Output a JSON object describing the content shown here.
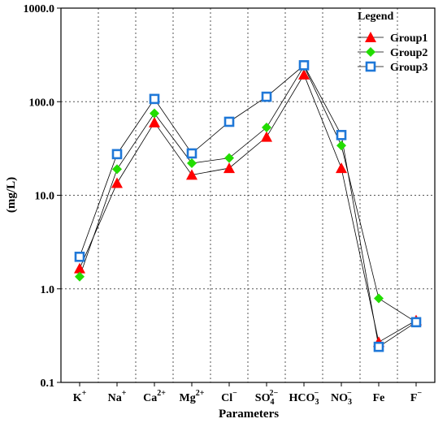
{
  "chart_data": {
    "type": "line",
    "yscale": "log",
    "ylim": [
      0.1,
      1000
    ],
    "ylabel": "(mg/L)",
    "xlabel": "Parameters",
    "y_ticks": [
      "0.1",
      "1.0",
      "10.0",
      "100.0",
      "1000.0"
    ],
    "categories": [
      {
        "base": "K",
        "sup": "+"
      },
      {
        "base": "Na",
        "sup": "+"
      },
      {
        "base": "Ca",
        "sup": "2+"
      },
      {
        "base": "Mg",
        "sup": "2+"
      },
      {
        "base": "Cl",
        "sup": "−"
      },
      {
        "base": "SO",
        "sub": "4",
        "sup": "2−"
      },
      {
        "base": "HCO",
        "sub": "3",
        "sup": "−"
      },
      {
        "base": "NO",
        "sub": "3",
        "sup": "−"
      },
      {
        "base": "Fe"
      },
      {
        "base": "F",
        "sup": "−"
      }
    ],
    "grid": true,
    "legend": {
      "title": "Legend",
      "position": "top-right"
    },
    "series": [
      {
        "name": "Group1",
        "marker": "triangle",
        "color": "#ff0000",
        "values": [
          1.65,
          13.5,
          60,
          16.5,
          19.5,
          42,
          195,
          19.5,
          0.27,
          0.46
        ]
      },
      {
        "name": "Group2",
        "marker": "diamond",
        "color": "#22dd00",
        "values": [
          1.35,
          19,
          75,
          22,
          25,
          53,
          240,
          34,
          0.79,
          0.44
        ]
      },
      {
        "name": "Group3",
        "marker": "square",
        "color": "#1f78d8",
        "values": [
          2.2,
          27.5,
          107,
          28,
          61,
          113,
          245,
          44,
          0.24,
          0.44
        ]
      }
    ]
  }
}
